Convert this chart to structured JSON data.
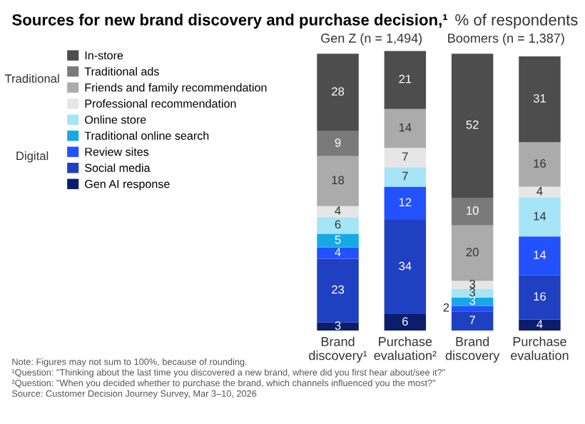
{
  "chart_data": {
    "type": "bar",
    "stacked": true,
    "title": "Sources for new brand discovery and purchase decision,¹",
    "subtitle": "% of respondents",
    "categories": [
      "Brand discovery¹",
      "Purchase evaluation²",
      "Brand discovery",
      "Purchase evaluation"
    ],
    "series": [
      {
        "name": "Gen AI response",
        "color": "#0b1d6b",
        "values": [
          3,
          6,
          0,
          4
        ],
        "value_labels": [
          "3",
          "6",
          null,
          "4"
        ]
      },
      {
        "name": "Social media",
        "color": "#1f40c0",
        "values": [
          23,
          34,
          7,
          16
        ],
        "value_labels": [
          "23",
          "34",
          "7",
          "16"
        ]
      },
      {
        "name": "Review sites",
        "color": "#2251ff",
        "values": [
          4,
          12,
          2,
          14
        ],
        "value_labels": [
          "4",
          "12",
          "2",
          "14"
        ]
      },
      {
        "name": "Traditional online search",
        "color": "#17a9e6",
        "values": [
          5,
          0,
          3,
          0
        ],
        "value_labels": [
          "5",
          null,
          "3",
          null
        ]
      },
      {
        "name": "Online store",
        "color": "#a6e4f7",
        "values": [
          6,
          7,
          3,
          14
        ],
        "value_labels": [
          "6",
          "7",
          "3",
          "14"
        ]
      },
      {
        "name": "Professional recommendation",
        "color": "#e6e6e6",
        "values": [
          4,
          7,
          3,
          4
        ],
        "value_labels": [
          "4",
          "7",
          "3",
          "4"
        ]
      },
      {
        "name": "Friends and family recommendation",
        "color": "#ababab",
        "values": [
          18,
          14,
          20,
          16
        ],
        "value_labels": [
          "18",
          "14",
          "20",
          "16"
        ]
      },
      {
        "name": "Traditional ads",
        "color": "#7a7a7a",
        "values": [
          9,
          0,
          10,
          0
        ],
        "value_labels": [
          "9",
          null,
          "10",
          null
        ]
      },
      {
        "name": "In-store",
        "color": "#4d4d4d",
        "values": [
          28,
          21,
          52,
          31
        ],
        "value_labels": [
          "28",
          "21",
          "52",
          "31"
        ]
      }
    ],
    "legend": "left",
    "annotations": [
      "Gen Z (n = 1,494)",
      "Boomers (n = 1,387)",
      "Traditional",
      "Digital",
      "Note: Figures may not sum to 100%, because of rounding.",
      "¹Question: \"Thinking about the last time you discovered a new brand, where did you first hear about/see it?\"",
      "²Question: \"When you decided whether to purchase the brand, which channels influenced you the most?\"",
      "Source: Customer Decision Journey Survey, Mar 3–10, 2026"
    ]
  }
}
